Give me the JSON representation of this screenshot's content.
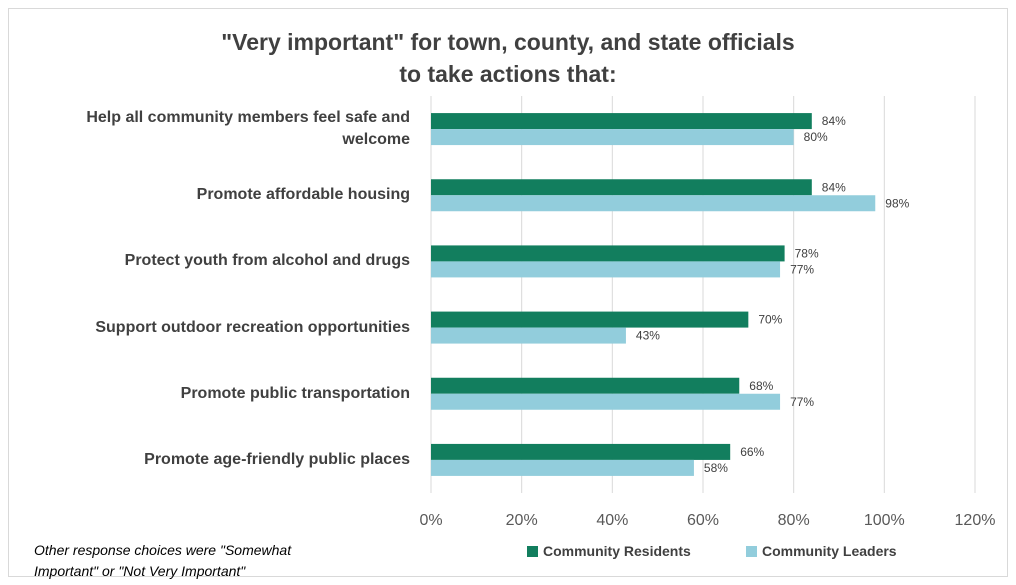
{
  "chart_data": {
    "type": "bar",
    "orientation": "horizontal",
    "title_lines": [
      "\"Very important\" for town, county, and state officials",
      "to take actions that:"
    ],
    "categories": [
      [
        "Help all community members feel safe and",
        "welcome"
      ],
      [
        "Promote affordable housing"
      ],
      [
        "Protect youth from alcohol and drugs"
      ],
      [
        "Support outdoor recreation opportunities"
      ],
      [
        "Promote public transportation"
      ],
      [
        "Promote age-friendly public places"
      ]
    ],
    "series": [
      {
        "name": "Community Residents",
        "color": "#127e5e",
        "values": [
          84,
          84,
          78,
          70,
          68,
          66
        ]
      },
      {
        "name": "Community Leaders",
        "color": "#92cddc",
        "values": [
          80,
          98,
          77,
          43,
          77,
          58
        ]
      }
    ],
    "value_suffix": "%",
    "xlim": [
      0,
      120
    ],
    "xticks": [
      "0%",
      "20%",
      "40%",
      "60%",
      "80%",
      "100%",
      "120%"
    ],
    "grid": true,
    "legend_position": "bottom"
  },
  "footnote": [
    "Other response choices were \"Somewhat",
    "Important\" or \"Not Very Important\""
  ]
}
